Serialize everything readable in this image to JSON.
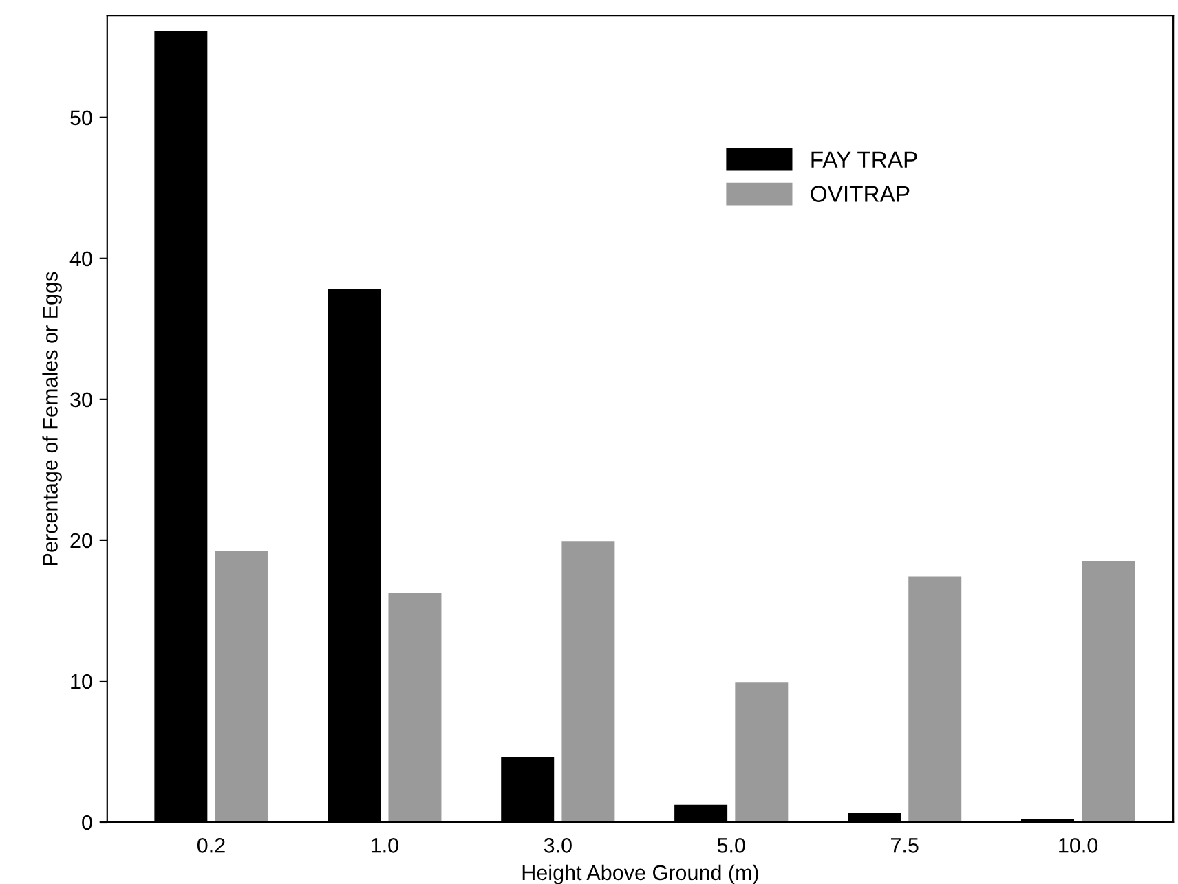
{
  "chart_data": {
    "type": "bar",
    "xlabel": "Height Above Ground (m)",
    "ylabel": "Percentage of Females or Eggs",
    "categories": [
      "0.2",
      "1.0",
      "3.0",
      "5.0",
      "7.5",
      "10.0"
    ],
    "series": [
      {
        "name": "FAY TRAP",
        "color": "#000000",
        "values": [
          56.1,
          37.8,
          4.6,
          1.2,
          0.6,
          0.2
        ]
      },
      {
        "name": "OVITRAP",
        "color": "#9a9a9a",
        "values": [
          19.2,
          16.2,
          19.9,
          9.9,
          17.4,
          18.5
        ]
      }
    ],
    "ylim": [
      0,
      57.2
    ],
    "yticks": [
      0,
      10,
      20,
      30,
      40,
      50
    ],
    "grid": false,
    "legend": "top right"
  }
}
